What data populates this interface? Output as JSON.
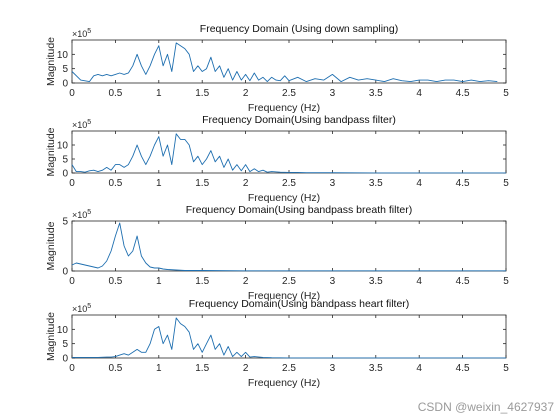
{
  "figure": {
    "watermark": "CSDN @weixin_4627937",
    "line_color": "#1f6fb0",
    "axis_color": "#262626"
  },
  "chart_data": [
    {
      "type": "line",
      "title": "Frequency Domain (Using down sampling)",
      "xlabel": "Frequency (Hz)",
      "ylabel": "Magnitude",
      "exponent_label": "×10^5",
      "xlim": [
        0,
        5
      ],
      "ylim": [
        0,
        15
      ],
      "xticks": [
        0,
        0.5,
        1,
        1.5,
        2,
        2.5,
        3,
        3.5,
        4,
        4.5,
        5
      ],
      "yticks": [
        0,
        5,
        10
      ],
      "grid": false,
      "x": [
        0,
        0.1,
        0.2,
        0.25,
        0.3,
        0.35,
        0.4,
        0.45,
        0.5,
        0.55,
        0.6,
        0.65,
        0.7,
        0.75,
        0.8,
        0.85,
        0.9,
        0.95,
        1.0,
        1.05,
        1.1,
        1.15,
        1.2,
        1.25,
        1.3,
        1.35,
        1.4,
        1.45,
        1.5,
        1.55,
        1.6,
        1.65,
        1.7,
        1.75,
        1.8,
        1.85,
        1.9,
        1.95,
        2.0,
        2.05,
        2.1,
        2.15,
        2.2,
        2.25,
        2.3,
        2.35,
        2.4,
        2.45,
        2.5,
        2.6,
        2.7,
        2.8,
        2.9,
        3.0,
        3.1,
        3.2,
        3.3,
        3.4,
        3.5,
        3.6,
        3.7,
        3.8,
        3.9,
        4.0,
        4.1,
        4.2,
        4.3,
        4.4,
        4.5,
        4.6,
        4.7,
        4.8,
        4.9
      ],
      "values": [
        4,
        1,
        0.5,
        2.5,
        3,
        2.5,
        3,
        2.5,
        3,
        3.5,
        3,
        3.5,
        6,
        10,
        6,
        3,
        6,
        10,
        13,
        6,
        10,
        4,
        14,
        13,
        12,
        10,
        4,
        6,
        4,
        5,
        9,
        4,
        6,
        2,
        5,
        1,
        4,
        1,
        3,
        0.8,
        3.5,
        1,
        2,
        0.5,
        2,
        1,
        0.8,
        2.5,
        0.8,
        2,
        0.5,
        1.5,
        1,
        3,
        0.5,
        2,
        1,
        1.5,
        1,
        0.5,
        1.5,
        0.8,
        0.5,
        1,
        1,
        0.5,
        1,
        1,
        0.5,
        1,
        0.5,
        0.8,
        0.5
      ],
      "series": [
        {
          "values_ref": "values"
        }
      ]
    },
    {
      "type": "line",
      "title": "Frequency Domain(Using bandpass filter)",
      "xlabel": "Frequency (Hz)",
      "ylabel": "Magnitude",
      "exponent_label": "×10^5",
      "xlim": [
        0,
        5
      ],
      "ylim": [
        0,
        15
      ],
      "xticks": [
        0,
        0.5,
        1,
        1.5,
        2,
        2.5,
        3,
        3.5,
        4,
        4.5,
        5
      ],
      "yticks": [
        0,
        5,
        10
      ],
      "grid": false,
      "x": [
        0,
        0.05,
        0.1,
        0.15,
        0.2,
        0.25,
        0.3,
        0.35,
        0.4,
        0.45,
        0.5,
        0.55,
        0.6,
        0.65,
        0.7,
        0.75,
        0.8,
        0.85,
        0.9,
        0.95,
        1.0,
        1.05,
        1.1,
        1.15,
        1.2,
        1.25,
        1.3,
        1.35,
        1.4,
        1.45,
        1.5,
        1.55,
        1.6,
        1.65,
        1.7,
        1.75,
        1.8,
        1.85,
        1.9,
        1.95,
        2.0,
        2.05,
        2.1,
        2.15,
        2.2,
        2.25,
        2.3,
        2.4,
        2.5,
        2.6,
        2.7,
        2.8,
        2.9,
        3.0,
        3.5,
        4.0,
        4.5,
        5.0
      ],
      "values": [
        3,
        0.5,
        0.5,
        0.3,
        0.8,
        1,
        0.5,
        1,
        2,
        1,
        3,
        3,
        2,
        3,
        6,
        10,
        6,
        3,
        6,
        10,
        13,
        6,
        10,
        3,
        14,
        12,
        12,
        10,
        4,
        6,
        3,
        5,
        8,
        4,
        6,
        2,
        5,
        1,
        3,
        0.8,
        3,
        0.5,
        1.5,
        0.5,
        1,
        0.3,
        0.5,
        0.3,
        0.2,
        0.2,
        0.1,
        0.1,
        0.1,
        0.1,
        0.05,
        0.05,
        0.05,
        0.05
      ]
    },
    {
      "type": "line",
      "title": "Frequency Domain(Using bandpass breath filter)",
      "xlabel": "Frequency (Hz)",
      "ylabel": "Magnitude",
      "exponent_label": "×10^5",
      "xlim": [
        0,
        5
      ],
      "ylim": [
        0,
        5
      ],
      "xticks": [
        0,
        0.5,
        1,
        1.5,
        2,
        2.5,
        3,
        3.5,
        4,
        4.5,
        5
      ],
      "yticks": [
        0,
        5
      ],
      "grid": false,
      "x": [
        0,
        0.05,
        0.1,
        0.15,
        0.2,
        0.25,
        0.3,
        0.35,
        0.4,
        0.45,
        0.5,
        0.55,
        0.6,
        0.65,
        0.7,
        0.75,
        0.8,
        0.85,
        0.9,
        0.95,
        1.0,
        1.05,
        1.1,
        1.2,
        1.3,
        1.5,
        2.0,
        3.0,
        4.0,
        5.0
      ],
      "values": [
        0.6,
        0.8,
        0.7,
        0.6,
        0.5,
        0.4,
        0.3,
        0.5,
        1,
        2,
        3.5,
        4.8,
        2.5,
        1.5,
        2,
        3.5,
        1.5,
        0.8,
        0.4,
        0.3,
        0.3,
        0.2,
        0.15,
        0.1,
        0.05,
        0.05,
        0.02,
        0.02,
        0.02,
        0.02
      ]
    },
    {
      "type": "line",
      "title": "Frequency Domain(Using bandpass heart filter)",
      "xlabel": "Frequency (Hz)",
      "ylabel": "Magnitude",
      "exponent_label": "×10^5",
      "xlim": [
        0,
        5
      ],
      "ylim": [
        0,
        15
      ],
      "xticks": [
        0,
        0.5,
        1,
        1.5,
        2,
        2.5,
        3,
        3.5,
        4,
        4.5,
        5
      ],
      "yticks": [
        0,
        5,
        10
      ],
      "grid": false,
      "x": [
        0,
        0.3,
        0.4,
        0.45,
        0.5,
        0.55,
        0.6,
        0.65,
        0.7,
        0.75,
        0.8,
        0.85,
        0.9,
        0.95,
        1.0,
        1.05,
        1.1,
        1.15,
        1.2,
        1.25,
        1.3,
        1.35,
        1.4,
        1.45,
        1.5,
        1.55,
        1.6,
        1.65,
        1.7,
        1.75,
        1.8,
        1.85,
        1.9,
        1.95,
        2.0,
        2.05,
        2.1,
        2.2,
        2.3,
        2.5,
        3.0,
        3.5,
        4.0,
        4.5,
        5.0
      ],
      "values": [
        0.2,
        0.2,
        0.3,
        0.3,
        0.5,
        1,
        1.5,
        1,
        2,
        3,
        2,
        2,
        5,
        10,
        11,
        5,
        8,
        3,
        14,
        12,
        11,
        9,
        3,
        5,
        2,
        5,
        8,
        3,
        5,
        1,
        4,
        0.5,
        2,
        0.5,
        2,
        0.3,
        0.5,
        0.2,
        0.1,
        0.05,
        0.05,
        0.05,
        0.05,
        0.05,
        0.05
      ]
    }
  ]
}
